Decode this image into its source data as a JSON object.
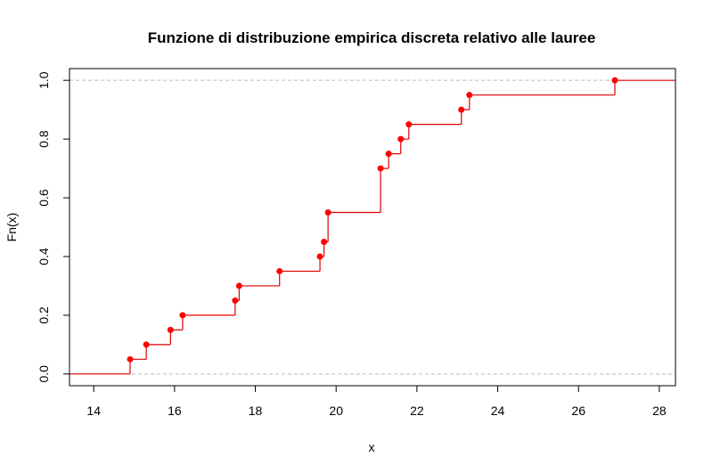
{
  "chart_data": {
    "type": "line",
    "subtype": "step-ecdf",
    "title": "Funzione di distribuzione empirica discreta relativo alle lauree",
    "xlabel": "x",
    "ylabel": "Fn(x)",
    "xlim": [
      13.4,
      28.4
    ],
    "ylim": [
      -0.04,
      1.04
    ],
    "x_ticks": [
      14,
      16,
      18,
      20,
      22,
      24,
      26,
      28
    ],
    "y_ticks": [
      0.0,
      0.2,
      0.4,
      0.6,
      0.8,
      1.0
    ],
    "x_tick_labels": [
      "14",
      "16",
      "18",
      "20",
      "22",
      "24",
      "26",
      "28"
    ],
    "y_tick_labels": [
      "0.0",
      "0.2",
      "0.4",
      "0.6",
      "0.8",
      "1.0"
    ],
    "reference_lines": [
      0,
      1
    ],
    "series": [
      {
        "x": [
          14.9,
          15.3,
          15.9,
          16.2,
          17.5,
          17.6,
          18.6,
          19.6,
          19.7,
          19.8,
          21.1,
          21.3,
          21.6,
          21.8,
          23.1,
          23.3,
          26.9
        ],
        "y": [
          0.05,
          0.1,
          0.15,
          0.2,
          0.25,
          0.3,
          0.35,
          0.4,
          0.45,
          0.55,
          0.7,
          0.75,
          0.8,
          0.85,
          0.9,
          0.95,
          1.0
        ]
      }
    ],
    "colors": {
      "line": "#e00000",
      "point": "#ff0000",
      "reference": "#bebebe"
    }
  }
}
